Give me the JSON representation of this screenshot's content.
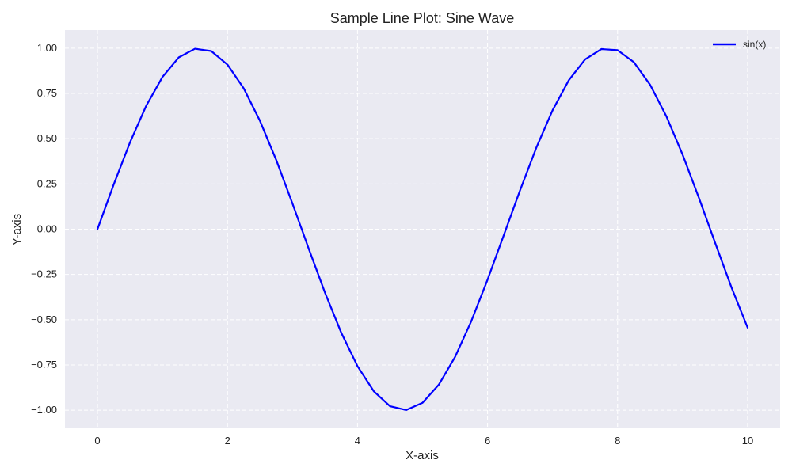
{
  "chart_data": {
    "type": "line",
    "title": "Sample Line Plot: Sine Wave",
    "xlabel": "X-axis",
    "ylabel": "Y-axis",
    "xlim": [
      -0.5,
      10.5
    ],
    "ylim": [
      -1.1,
      1.1
    ],
    "grid": true,
    "grid_style": "dashed",
    "legend_position": "top-right",
    "x_ticks": [
      {
        "value": 0,
        "label": "0"
      },
      {
        "value": 2,
        "label": "2"
      },
      {
        "value": 4,
        "label": "4"
      },
      {
        "value": 6,
        "label": "6"
      },
      {
        "value": 8,
        "label": "8"
      },
      {
        "value": 10,
        "label": "10"
      }
    ],
    "y_ticks": [
      {
        "value": 1.0,
        "label": "1.00"
      },
      {
        "value": 0.75,
        "label": "0.75"
      },
      {
        "value": 0.5,
        "label": "0.50"
      },
      {
        "value": 0.25,
        "label": "0.25"
      },
      {
        "value": 0.0,
        "label": "0.00"
      },
      {
        "value": -0.25,
        "label": "−0.25"
      },
      {
        "value": -0.5,
        "label": "−0.50"
      },
      {
        "value": -0.75,
        "label": "−0.75"
      },
      {
        "value": -1.0,
        "label": "−1.00"
      }
    ],
    "series": [
      {
        "name": "sin(x)",
        "color": "#0000ff",
        "x": [
          0,
          0.25,
          0.5,
          0.75,
          1,
          1.25,
          1.5,
          1.75,
          2,
          2.25,
          2.5,
          2.75,
          3,
          3.25,
          3.5,
          3.75,
          4,
          4.25,
          4.5,
          4.75,
          5,
          5.25,
          5.5,
          5.75,
          6,
          6.25,
          6.5,
          6.75,
          7,
          7.25,
          7.5,
          7.75,
          8,
          8.25,
          8.5,
          8.75,
          9,
          9.25,
          9.5,
          9.75,
          10
        ],
        "y": [
          0,
          0.247,
          0.479,
          0.682,
          0.841,
          0.949,
          0.997,
          0.984,
          0.909,
          0.778,
          0.598,
          0.382,
          0.141,
          -0.108,
          -0.351,
          -0.572,
          -0.757,
          -0.895,
          -0.978,
          -0.999,
          -0.959,
          -0.859,
          -0.706,
          -0.508,
          -0.279,
          -0.033,
          0.215,
          0.45,
          0.657,
          0.823,
          0.938,
          0.995,
          0.989,
          0.923,
          0.798,
          0.624,
          0.412,
          0.174,
          -0.075,
          -0.32,
          -0.544
        ]
      }
    ]
  },
  "colors": {
    "plot_background": "#eaeaf2",
    "grid": "#ffffff"
  }
}
